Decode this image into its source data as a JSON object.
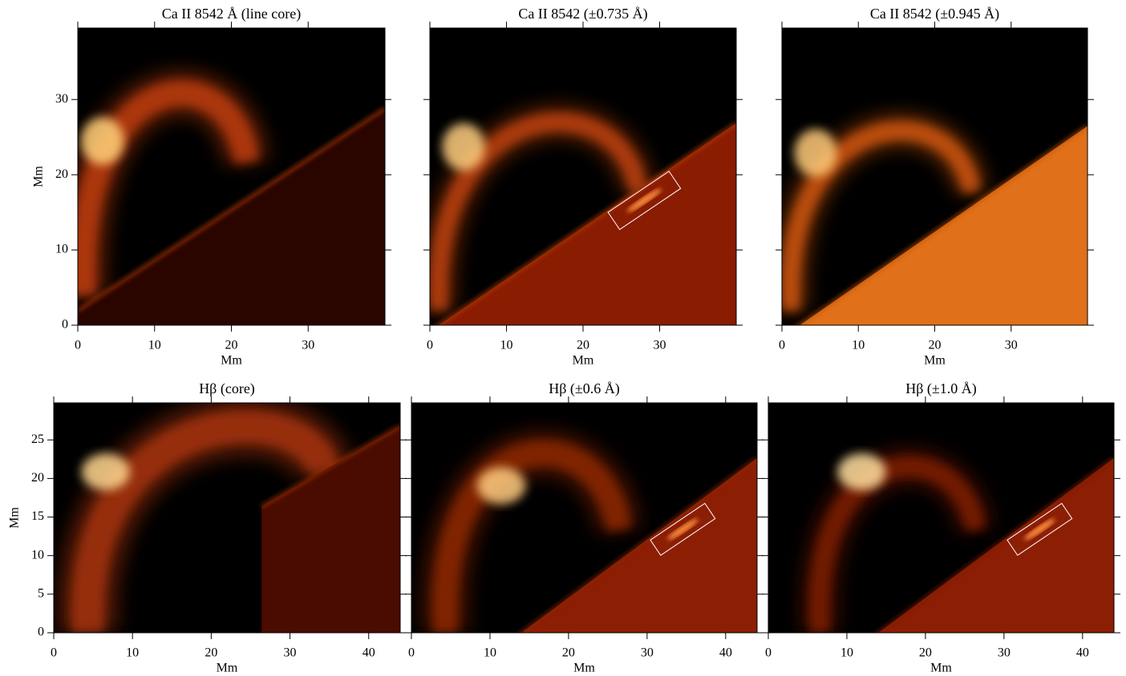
{
  "chart_data": [
    {
      "type": "image",
      "title": "Ca II 8542 Å (line core)",
      "xlabel": "Mm",
      "ylabel": "Mm",
      "xlim": [
        0,
        40
      ],
      "ylim": [
        0,
        39.5
      ],
      "xticks": [
        0,
        10,
        20,
        30
      ],
      "yticks": [
        0,
        10,
        20,
        30
      ],
      "show_ytick_labels": true
    },
    {
      "type": "image",
      "title": "Ca II 8542 (±0.735 Å)",
      "xlabel": "Mm",
      "xlim": [
        0,
        40
      ],
      "ylim": [
        0,
        39.5
      ],
      "xticks": [
        0,
        10,
        20,
        30
      ],
      "yticks": [
        0,
        10,
        20,
        30
      ],
      "show_ytick_labels": false
    },
    {
      "type": "image",
      "title": "Ca II 8542 (±0.945 Å)",
      "xlabel": "Mm",
      "xlim": [
        0,
        40
      ],
      "ylim": [
        0,
        39.5
      ],
      "xticks": [
        0,
        10,
        20,
        30
      ],
      "yticks": [
        0,
        10,
        20,
        30
      ],
      "show_ytick_labels": false
    },
    {
      "type": "image",
      "title": "Hβ (core)",
      "xlabel": "Mm",
      "ylabel": "Mm",
      "xlim": [
        0,
        44
      ],
      "ylim": [
        0,
        29.8
      ],
      "xticks": [
        0,
        10,
        20,
        30,
        40
      ],
      "yticks": [
        0,
        5,
        10,
        15,
        20,
        25
      ],
      "show_ytick_labels": true
    },
    {
      "type": "image",
      "title": "Hβ (±0.6 Å)",
      "xlabel": "Mm",
      "xlim": [
        0,
        44
      ],
      "ylim": [
        0,
        29.8
      ],
      "xticks": [
        0,
        10,
        20,
        30,
        40
      ],
      "yticks": [
        0,
        5,
        10,
        15,
        20,
        25
      ],
      "show_ytick_labels": false
    },
    {
      "type": "image",
      "title": "Hβ (±1.0 Å)",
      "xlabel": "Mm",
      "xlim": [
        0,
        44
      ],
      "ylim": [
        0,
        29.8
      ],
      "xticks": [
        0,
        10,
        20,
        30,
        40
      ],
      "yticks": [
        0,
        5,
        10,
        15,
        20,
        25
      ],
      "show_ytick_labels": false
    }
  ]
}
